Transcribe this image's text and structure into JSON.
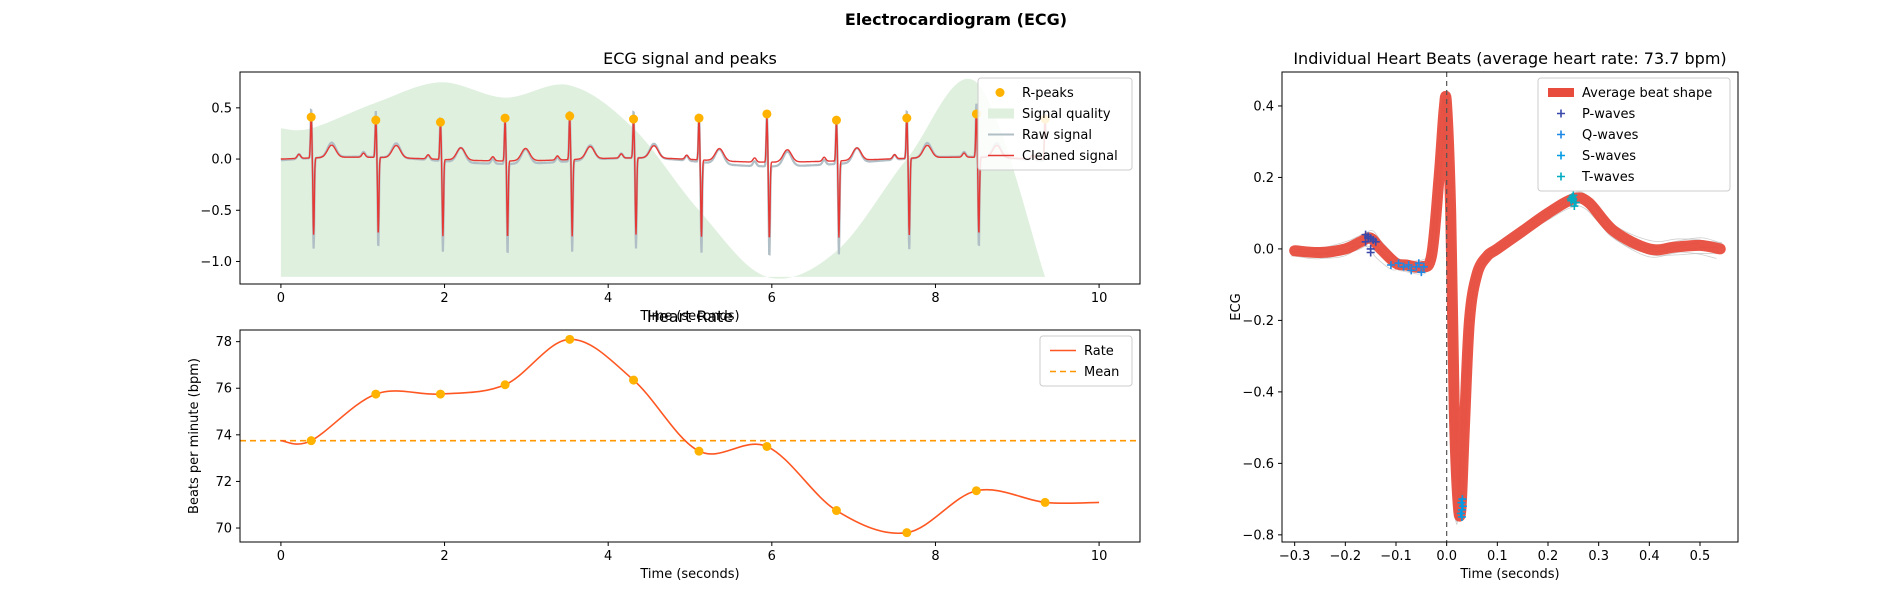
{
  "figure": {
    "suptitle": "Electrocardiogram (ECG)"
  },
  "colors": {
    "rpeak": "#FFB300",
    "quality": "#DFF0DF",
    "raw": "#B0BEC5",
    "cleaned": "#E53935",
    "rate": "#FF5722",
    "mean": "#FF9800",
    "avgbeat": "#E84C3D",
    "pwave": "#3949AB",
    "qwave": "#1E88E5",
    "swave": "#039BE5",
    "twave": "#00ACC1"
  },
  "chart_data": [
    {
      "id": "ecg",
      "type": "line",
      "title": "ECG signal and peaks",
      "xlabel": "Time (seconds)",
      "ylabel": "",
      "xlim": [
        -0.5,
        10.5
      ],
      "ylim": [
        -1.22,
        0.85
      ],
      "xticks": [
        0,
        2,
        4,
        6,
        8,
        10
      ],
      "xtick_labels": [
        "0",
        "2",
        "4",
        "6",
        "8",
        "10"
      ],
      "yticks": [
        -1.0,
        -0.5,
        0.0,
        0.5
      ],
      "ytick_labels": [
        "−1.0",
        "−0.5",
        "0.0",
        "0.5"
      ],
      "legend": {
        "position": "top-right",
        "entries": [
          "R-peaks",
          "Signal quality",
          "Raw signal",
          "Cleaned signal"
        ]
      },
      "r_peaks": {
        "x": [
          0.37,
          1.16,
          1.95,
          2.74,
          3.53,
          4.31,
          5.11,
          5.94,
          6.79,
          7.65,
          8.5,
          9.34
        ],
        "y": [
          0.41,
          0.38,
          0.36,
          0.4,
          0.42,
          0.39,
          0.4,
          0.44,
          0.38,
          0.4,
          0.44,
          0.39
        ]
      },
      "quality": {
        "x": [
          0,
          0.37,
          1.16,
          1.95,
          2.74,
          3.53,
          4.31,
          5.11,
          5.94,
          6.79,
          7.65,
          8.5,
          9.34
        ],
        "y": [
          0.3,
          0.3,
          0.55,
          0.75,
          0.6,
          0.72,
          0.3,
          -0.5,
          -1.15,
          -0.9,
          0.0,
          0.75,
          -1.15
        ]
      },
      "quality_base": -1.15
    },
    {
      "id": "rate",
      "type": "line",
      "title": "Heart Rate",
      "xlabel": "Time (seconds)",
      "ylabel": "Beats per minute (bpm)",
      "xlim": [
        -0.5,
        10.5
      ],
      "ylim": [
        69.4,
        78.5
      ],
      "xticks": [
        0,
        2,
        4,
        6,
        8,
        10
      ],
      "xtick_labels": [
        "0",
        "2",
        "4",
        "6",
        "8",
        "10"
      ],
      "yticks": [
        70,
        72,
        74,
        76,
        78
      ],
      "ytick_labels": [
        "70",
        "72",
        "74",
        "76",
        "78"
      ],
      "legend": {
        "position": "top-right",
        "entries": [
          "Rate",
          "Mean"
        ]
      },
      "mean": 73.75,
      "points": {
        "x": [
          0.37,
          1.16,
          1.95,
          2.74,
          3.53,
          4.31,
          5.11,
          5.94,
          6.79,
          7.65,
          8.5,
          9.34
        ],
        "y": [
          73.75,
          75.75,
          75.75,
          76.15,
          78.1,
          76.35,
          73.3,
          73.5,
          70.75,
          69.8,
          71.6,
          71.1
        ]
      },
      "line_start": [
        0.0,
        73.75
      ],
      "line_end": [
        10.0,
        71.1
      ]
    },
    {
      "id": "beats",
      "type": "line",
      "title": "Individual Heart Beats (average heart rate: 73.7 bpm)",
      "xlabel": "Time (seconds)",
      "ylabel": "ECG",
      "xlim": [
        -0.325,
        0.575
      ],
      "ylim": [
        -0.82,
        0.495
      ],
      "xticks": [
        -0.3,
        -0.2,
        -0.1,
        0.0,
        0.1,
        0.2,
        0.3,
        0.4,
        0.5
      ],
      "xtick_labels": [
        "−0.3",
        "−0.2",
        "−0.1",
        "0.0",
        "0.1",
        "0.2",
        "0.3",
        "0.4",
        "0.5"
      ],
      "yticks": [
        -0.8,
        -0.6,
        -0.4,
        -0.2,
        0.0,
        0.2,
        0.4
      ],
      "ytick_labels": [
        "−0.8",
        "−0.6",
        "−0.4",
        "−0.2",
        "0.0",
        "0.2",
        "0.4"
      ],
      "legend": {
        "position": "top-right",
        "entries": [
          "Average beat shape",
          "P-waves",
          "Q-waves",
          "S-waves",
          "T-waves"
        ]
      },
      "vline": 0.0,
      "avg_beat": {
        "x": [
          -0.3,
          -0.25,
          -0.2,
          -0.17,
          -0.15,
          -0.13,
          -0.1,
          -0.08,
          -0.05,
          -0.03,
          -0.015,
          -0.005,
          0.0,
          0.008,
          0.015,
          0.022,
          0.028,
          0.035,
          0.045,
          0.06,
          0.08,
          0.1,
          0.15,
          0.2,
          0.25,
          0.28,
          0.33,
          0.4,
          0.45,
          0.5,
          0.54
        ],
        "y": [
          -0.005,
          -0.01,
          0.0,
          0.02,
          0.03,
          0.0,
          -0.04,
          -0.045,
          -0.05,
          -0.02,
          0.2,
          0.39,
          0.4,
          0.1,
          -0.45,
          -0.7,
          -0.73,
          -0.5,
          -0.2,
          -0.07,
          -0.02,
          0.0,
          0.05,
          0.1,
          0.14,
          0.13,
          0.05,
          0.0,
          0.005,
          0.01,
          0.0
        ]
      },
      "p_waves": {
        "x": [
          -0.16,
          -0.15,
          -0.155,
          -0.145,
          -0.15,
          -0.16,
          -0.14,
          -0.15,
          -0.155
        ],
        "y": [
          0.02,
          0.03,
          0.035,
          0.025,
          0.0,
          0.04,
          0.02,
          -0.01,
          0.03
        ]
      },
      "q_waves": {
        "x": [
          -0.11,
          -0.095,
          -0.085,
          -0.075,
          -0.07,
          -0.06,
          -0.055,
          -0.05,
          -0.045
        ],
        "y": [
          -0.045,
          -0.04,
          -0.05,
          -0.045,
          -0.06,
          -0.05,
          -0.04,
          -0.065,
          -0.05
        ]
      },
      "s_waves": {
        "x": [
          0.03,
          0.028,
          0.032,
          0.03,
          0.029,
          0.031
        ],
        "y": [
          -0.73,
          -0.74,
          -0.72,
          -0.75,
          -0.71,
          -0.7
        ]
      },
      "t_waves": {
        "x": [
          0.245,
          0.25,
          0.255,
          0.248,
          0.252,
          0.25,
          0.246
        ],
        "y": [
          0.14,
          0.15,
          0.13,
          0.145,
          0.12,
          0.14,
          0.135
        ]
      }
    }
  ]
}
